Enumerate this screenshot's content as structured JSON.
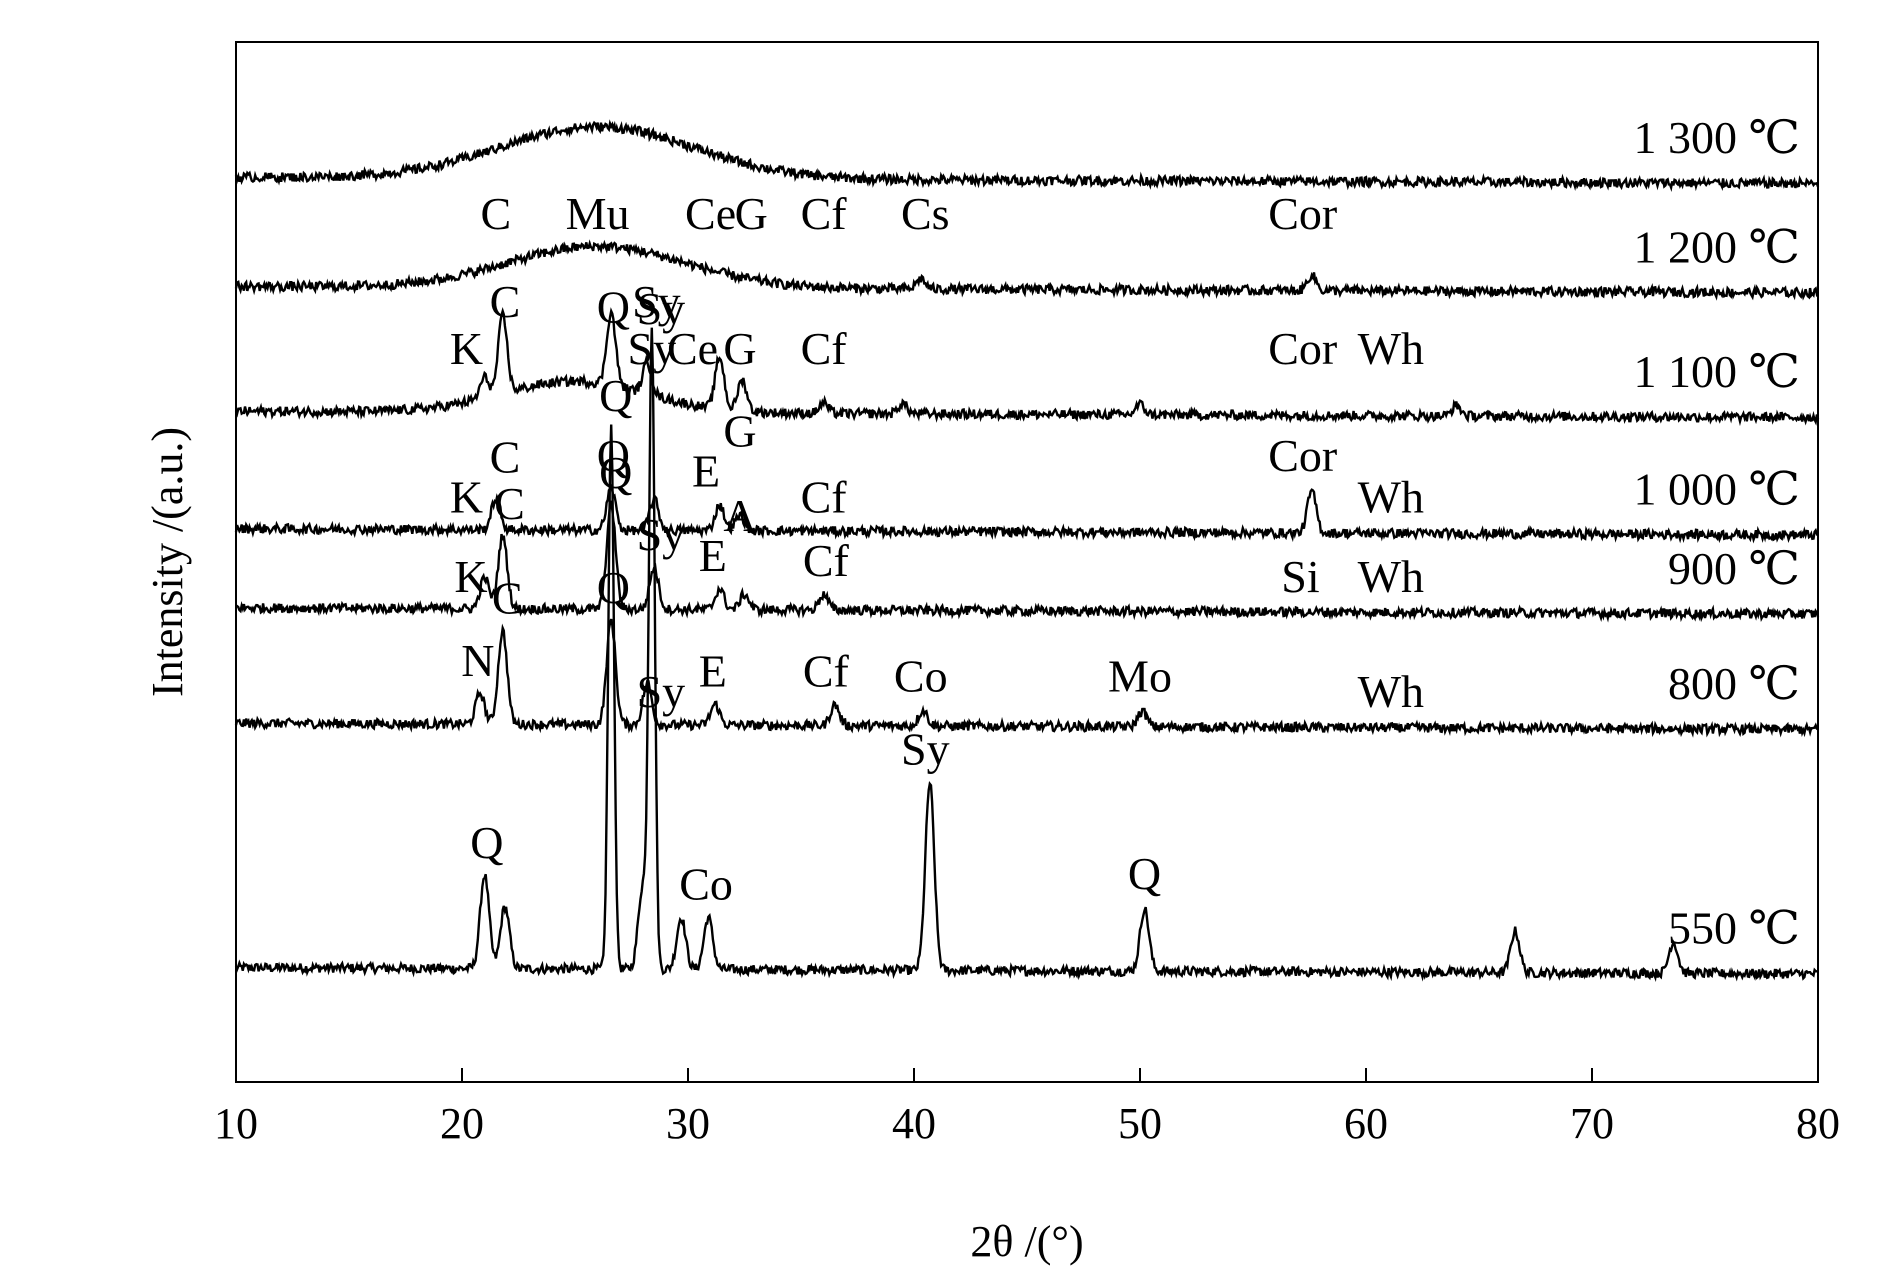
{
  "chart_data": {
    "type": "line",
    "title": "",
    "xlabel": "2θ /(°)",
    "ylabel": "Intensity /(a.u.)",
    "xlim": [
      10,
      80
    ],
    "ylim": [
      0,
      1
    ],
    "x_ticks": [
      "10",
      "20",
      "30",
      "40",
      "50",
      "60",
      "70",
      "80"
    ],
    "grid": false,
    "legend": "none",
    "series": [
      {
        "name": "550 ℃",
        "baseline": 0.11,
        "peaks": [
          [
            21.0,
            0.09
          ],
          [
            21.9,
            0.06
          ],
          [
            26.6,
            0.52
          ],
          [
            28.0,
            0.08
          ],
          [
            28.4,
            0.61
          ],
          [
            29.7,
            0.05
          ],
          [
            30.9,
            0.05
          ],
          [
            40.7,
            0.18
          ],
          [
            50.2,
            0.06
          ],
          [
            66.6,
            0.04
          ],
          [
            73.6,
            0.03
          ]
        ],
        "annotations": [
          {
            "label": "Q",
            "x": 21.1
          },
          {
            "label": "Q",
            "x": 26.8
          },
          {
            "label": "Sy",
            "x": 28.6
          },
          {
            "label": "Co",
            "x": 30.8
          },
          {
            "label": "Sy",
            "x": 40.5
          },
          {
            "label": "Q",
            "x": 50.2
          }
        ]
      },
      {
        "name": "800 ℃",
        "baseline": 0.345,
        "peaks": [
          [
            20.8,
            0.03
          ],
          [
            21.8,
            0.09
          ],
          [
            26.6,
            0.1
          ],
          [
            28.2,
            0.04
          ],
          [
            31.2,
            0.02
          ],
          [
            36.5,
            0.02
          ],
          [
            40.4,
            0.015
          ],
          [
            50.1,
            0.015
          ]
        ],
        "annotations": [
          {
            "label": "N",
            "x": 20.7
          },
          {
            "label": "C",
            "x": 22.0
          },
          {
            "label": "Q",
            "x": 26.7
          },
          {
            "label": "Sy",
            "x": 28.8
          },
          {
            "label": "E",
            "x": 31.1
          },
          {
            "label": "Cf",
            "x": 36.1
          },
          {
            "label": "Co",
            "x": 40.3
          },
          {
            "label": "Mo",
            "x": 50.0
          },
          {
            "label": "Wh",
            "x": 61.1
          }
        ]
      },
      {
        "name": "900 ℃",
        "baseline": 0.456,
        "peaks": [
          [
            21.0,
            0.03
          ],
          [
            21.8,
            0.07
          ],
          [
            26.6,
            0.1
          ],
          [
            28.5,
            0.04
          ],
          [
            31.4,
            0.02
          ],
          [
            32.5,
            0.015
          ],
          [
            36.0,
            0.015
          ]
        ],
        "annotations": [
          {
            "label": "K",
            "x": 20.4
          },
          {
            "label": "C",
            "x": 22.1
          },
          {
            "label": "Q",
            "x": 26.8
          },
          {
            "label": "Sy",
            "x": 28.8
          },
          {
            "label": "E",
            "x": 31.1
          },
          {
            "label": "A",
            "x": 32.3
          },
          {
            "label": "Cf",
            "x": 36.1
          },
          {
            "label": "Si",
            "x": 57.1
          },
          {
            "label": "Wh",
            "x": 61.1
          }
        ]
      },
      {
        "name": "1 000 ℃",
        "baseline": 0.532,
        "peaks": [
          [
            21.5,
            0.03
          ],
          [
            26.6,
            0.04
          ],
          [
            28.5,
            0.03
          ],
          [
            31.4,
            0.025
          ],
          [
            32.3,
            0.015
          ],
          [
            57.6,
            0.04
          ]
        ],
        "annotations": [
          {
            "label": "K",
            "x": 20.2
          },
          {
            "label": "C",
            "x": 21.9
          },
          {
            "label": "Q",
            "x": 26.7
          },
          {
            "label": "E",
            "x": 30.8
          },
          {
            "label": "G",
            "x": 32.3
          },
          {
            "label": "Cf",
            "x": 36.0
          },
          {
            "label": "Cor",
            "x": 57.2
          },
          {
            "label": "Wh",
            "x": 61.1
          }
        ]
      },
      {
        "name": "1 100 ℃",
        "baseline": 0.645,
        "peaks": [
          [
            21.0,
            0.02
          ],
          [
            21.8,
            0.075
          ],
          [
            26.6,
            0.07
          ],
          [
            28.2,
            0.03
          ],
          [
            31.4,
            0.05
          ],
          [
            32.4,
            0.03
          ],
          [
            36.0,
            0.01
          ],
          [
            39.5,
            0.01
          ],
          [
            50.0,
            0.01
          ],
          [
            64.0,
            0.01
          ]
        ],
        "halo": [
          25.0,
          4.5,
          0.03
        ],
        "annotations": [
          {
            "label": "K",
            "x": 20.2
          },
          {
            "label": "C",
            "x": 21.9
          },
          {
            "label": "Q",
            "x": 26.7
          },
          {
            "label": "Ce",
            "x": 30.2
          },
          {
            "label": "Sy",
            "x": 28.8
          },
          {
            "label": "G",
            "x": 32.3
          },
          {
            "label": "Cf",
            "x": 36.0
          },
          {
            "label": "Sy",
            "x": 28.4
          },
          {
            "label": "Cor",
            "x": 57.2
          },
          {
            "label": "Wh",
            "x": 61.1
          }
        ]
      },
      {
        "name": "1 200 ℃",
        "baseline": 0.765,
        "peaks": [
          [
            40.3,
            0.01
          ],
          [
            57.6,
            0.015
          ]
        ],
        "halo": [
          26.0,
          5.5,
          0.04
        ],
        "annotations": [
          {
            "label": "C",
            "x": 21.5
          },
          {
            "label": "Mu",
            "x": 26.0
          },
          {
            "label": "Ce",
            "x": 31.0
          },
          {
            "label": "G",
            "x": 32.8
          },
          {
            "label": "Cf",
            "x": 36.0
          },
          {
            "label": "Cs",
            "x": 40.5
          },
          {
            "label": "Cor",
            "x": 57.2
          }
        ]
      },
      {
        "name": "1 300 ℃",
        "baseline": 0.87,
        "peaks": [],
        "halo": [
          26.0,
          6.0,
          0.05
        ],
        "annotations": []
      }
    ]
  }
}
